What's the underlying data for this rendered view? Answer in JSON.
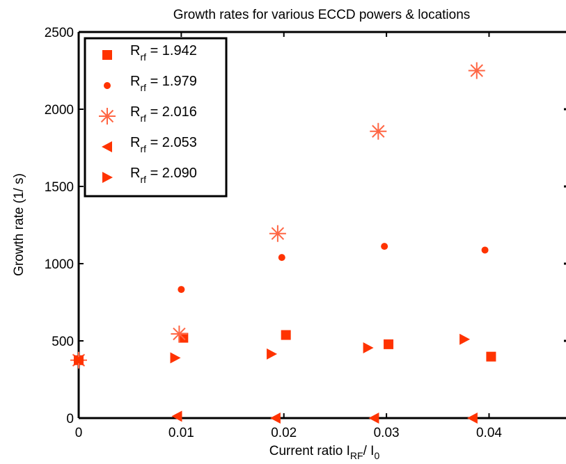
{
  "chart_data": {
    "type": "scatter",
    "title": "Growth rates for various ECCD powers & locations",
    "xlabel": {
      "main": "Current ratio I",
      "sub1": "RF",
      "mid": "/ I",
      "sub2": "0"
    },
    "ylabel": "Growth rate (1/ s)",
    "xlim": [
      0,
      0.0475
    ],
    "ylim": [
      0,
      2500
    ],
    "xticks": [
      0,
      0.01,
      0.02,
      0.03,
      0.04
    ],
    "xtick_labels": [
      "0",
      "0.01",
      "0.02",
      "0.03",
      "0.04"
    ],
    "yticks": [
      0,
      500,
      1000,
      1500,
      2000,
      2500
    ],
    "ytick_labels": [
      "0",
      "500",
      "1000",
      "1500",
      "2000",
      "2500"
    ],
    "grid": false,
    "legend_placement": "top-left",
    "color": "#ff3300",
    "series": [
      {
        "label_main": "R",
        "label_sub": "rf",
        "label_value": " = 1.942",
        "marker": "square",
        "x": [
          0,
          0.0102,
          0.0202,
          0.0302,
          0.0402
        ],
        "y": [
          375,
          520,
          538,
          478,
          398
        ]
      },
      {
        "label_main": "R",
        "label_sub": "rf",
        "label_value": " = 1.979",
        "marker": "circle",
        "x": [
          0,
          0.01,
          0.0198,
          0.0298,
          0.0396
        ],
        "y": [
          375,
          833,
          1040,
          1112,
          1088
        ]
      },
      {
        "label_main": "R",
        "label_sub": "rf",
        "label_value": " = 2.016",
        "marker": "asterisk",
        "x": [
          0,
          0.0098,
          0.0194,
          0.0292,
          0.0388
        ],
        "y": [
          375,
          545,
          1195,
          1857,
          2250
        ]
      },
      {
        "label_main": "R",
        "label_sub": "rf",
        "label_value": " = 2.053",
        "marker": "triangle-left",
        "x": [
          0,
          0.0096,
          0.0192,
          0.0288,
          0.0384
        ],
        "y": [
          375,
          12,
          0,
          0,
          0
        ]
      },
      {
        "label_main": "R",
        "label_sub": "rf",
        "label_value": " = 2.090",
        "marker": "triangle-right",
        "x": [
          0,
          0.0094,
          0.0188,
          0.0282,
          0.0376
        ],
        "y": [
          375,
          390,
          415,
          455,
          510
        ]
      }
    ]
  }
}
